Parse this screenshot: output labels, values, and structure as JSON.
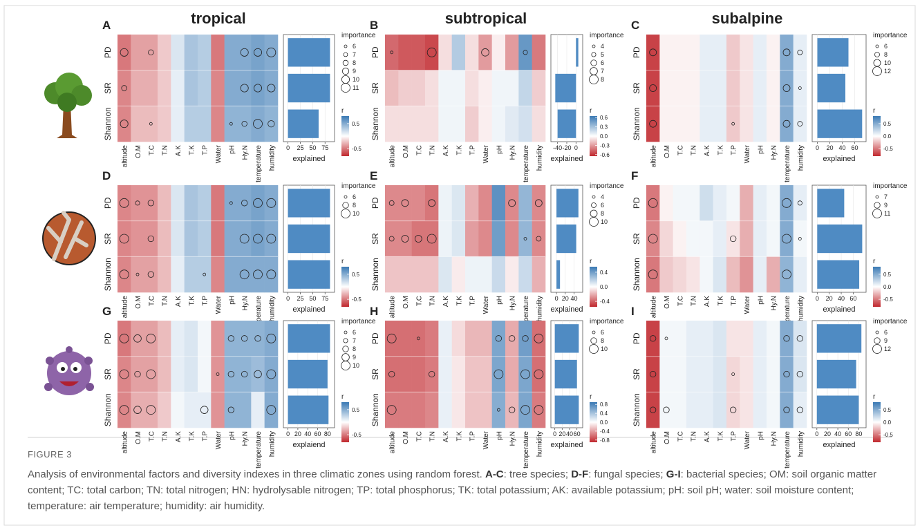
{
  "zones": [
    "tropical",
    "subtropical",
    "subalpine"
  ],
  "rows": [
    "PD",
    "SR",
    "Shannon"
  ],
  "columns": [
    "altitude",
    "O.M",
    "T.C",
    "T.N",
    "A.K",
    "T.K",
    "T.P",
    "Water",
    "pH",
    "Hy.N",
    "temperature",
    "humidity"
  ],
  "bar_color": "#4f8bc3",
  "color_scale": {
    "negative": "#c0272d",
    "zero": "#ffffff",
    "positive": "#3a79b4"
  },
  "panels": [
    {
      "label": "A",
      "r": [
        [
          -0.5,
          -0.35,
          -0.35,
          -0.2,
          0.15,
          0.35,
          0.3,
          -0.5,
          0.5,
          0.5,
          0.55,
          0.5
        ],
        [
          -0.45,
          -0.3,
          -0.3,
          -0.2,
          0.1,
          0.35,
          0.3,
          -0.45,
          0.5,
          0.5,
          0.55,
          0.5
        ],
        [
          -0.45,
          -0.25,
          -0.25,
          -0.2,
          0.1,
          0.3,
          0.3,
          -0.45,
          0.45,
          0.45,
          0.5,
          0.45
        ]
      ],
      "importance": [
        [
          10,
          null,
          8,
          null,
          null,
          null,
          null,
          null,
          null,
          10,
          10,
          11
        ],
        [
          8,
          null,
          null,
          null,
          null,
          null,
          null,
          null,
          null,
          10,
          10,
          10
        ],
        [
          10,
          null,
          6,
          null,
          null,
          null,
          null,
          null,
          6,
          8,
          11,
          9
        ]
      ],
      "explained": [
        85,
        85,
        62
      ],
      "explained_lim": [
        -5,
        90
      ],
      "explained_ticks": [
        0,
        25,
        50,
        75
      ],
      "explained_label": "explained",
      "importance_title": "importance",
      "importance_ticks": [
        6,
        7,
        8,
        9,
        10,
        11
      ],
      "r_title": "r",
      "r_lim": [
        -0.8,
        0.8
      ],
      "r_ticks": [
        0.5,
        -0.5
      ]
    },
    {
      "label": "B",
      "r": [
        [
          -0.45,
          -0.5,
          -0.5,
          -0.55,
          -0.1,
          0.25,
          -0.1,
          -0.3,
          -0.05,
          -0.3,
          0.5,
          -0.4
        ],
        [
          -0.2,
          -0.15,
          -0.15,
          -0.1,
          0.05,
          0.05,
          -0.1,
          -0.05,
          0.05,
          0.05,
          0.2,
          -0.15
        ],
        [
          -0.1,
          -0.1,
          -0.1,
          -0.1,
          0.05,
          0.05,
          -0.15,
          -0.05,
          0.05,
          0.1,
          0.15,
          -0.1
        ]
      ],
      "importance": [
        [
          4,
          null,
          null,
          8,
          null,
          null,
          null,
          7,
          null,
          null,
          5,
          null
        ],
        [
          null,
          null,
          null,
          null,
          null,
          null,
          null,
          null,
          null,
          null,
          null,
          null
        ],
        [
          null,
          null,
          null,
          null,
          null,
          null,
          null,
          null,
          null,
          null,
          null,
          null
        ]
      ],
      "explained": [
        5,
        -45,
        -40
      ],
      "explained_lim": [
        -50,
        10
      ],
      "explained_ticks": [
        -40,
        -20,
        0
      ],
      "explained_label": "explained",
      "importance_title": "importance",
      "importance_ticks": [
        4,
        5,
        6,
        7,
        8
      ],
      "r_title": "r",
      "r_lim": [
        -0.65,
        0.65
      ],
      "r_ticks": [
        0.6,
        0.3,
        {
          "value": 0,
          "label": "0.0"
        },
        -0.3,
        -0.6
      ]
    },
    {
      "label": "C",
      "r": [
        [
          -0.7,
          -0.05,
          -0.05,
          -0.05,
          0.1,
          0.1,
          -0.2,
          -0.1,
          0.1,
          -0.05,
          0.5,
          0.1
        ],
        [
          -0.7,
          -0.05,
          -0.05,
          -0.05,
          0.1,
          0.1,
          -0.2,
          -0.1,
          0.1,
          -0.05,
          0.5,
          0.1
        ],
        [
          -0.7,
          -0.05,
          -0.05,
          -0.05,
          0.1,
          0.1,
          -0.2,
          -0.1,
          0.1,
          -0.05,
          0.5,
          0.1
        ]
      ],
      "importance": [
        [
          10,
          null,
          null,
          null,
          null,
          null,
          null,
          null,
          null,
          null,
          10,
          8
        ],
        [
          10,
          null,
          null,
          null,
          null,
          null,
          null,
          null,
          null,
          null,
          10,
          6
        ],
        [
          10,
          null,
          null,
          null,
          null,
          null,
          6,
          null,
          null,
          null,
          10,
          8
        ]
      ],
      "explained": [
        50,
        45,
        72
      ],
      "explained_lim": [
        -5,
        75
      ],
      "explained_ticks": [
        0,
        20,
        40,
        60
      ],
      "explained_label": "explained",
      "importance_title": "importance",
      "importance_ticks": [
        6,
        8,
        10,
        12
      ],
      "r_title": "r",
      "r_lim": [
        -0.8,
        0.8
      ],
      "r_ticks": [
        0.5,
        {
          "value": 0,
          "label": "0.0"
        },
        -0.5
      ]
    },
    {
      "label": "D",
      "r": [
        [
          -0.45,
          -0.4,
          -0.4,
          -0.25,
          0.15,
          0.35,
          0.3,
          -0.5,
          0.5,
          0.5,
          0.55,
          0.5
        ],
        [
          -0.45,
          -0.4,
          -0.4,
          -0.25,
          0.15,
          0.35,
          0.3,
          -0.5,
          0.5,
          0.5,
          0.55,
          0.5
        ],
        [
          -0.45,
          -0.35,
          -0.35,
          -0.25,
          0.1,
          0.3,
          0.3,
          -0.45,
          0.5,
          0.5,
          0.5,
          0.5
        ]
      ],
      "importance": [
        [
          10,
          7,
          8,
          null,
          null,
          null,
          null,
          null,
          6,
          8,
          10,
          10
        ],
        [
          10,
          null,
          8,
          null,
          null,
          null,
          null,
          null,
          null,
          10,
          10,
          10
        ],
        [
          10,
          6,
          8,
          null,
          null,
          null,
          6,
          null,
          null,
          10,
          10,
          10
        ]
      ],
      "explained": [
        85,
        85,
        85
      ],
      "explained_lim": [
        -5,
        90
      ],
      "explained_ticks": [
        0,
        25,
        50,
        75
      ],
      "explained_label": "explained",
      "importance_title": "importance",
      "importance_ticks": [
        6,
        8,
        10
      ],
      "r_title": "r",
      "r_lim": [
        -0.8,
        0.8
      ],
      "r_ticks": [
        0.5,
        -0.5
      ]
    },
    {
      "label": "E",
      "r": [
        [
          -0.3,
          -0.3,
          -0.3,
          -0.35,
          0.05,
          0.1,
          -0.2,
          -0.3,
          0.45,
          -0.3,
          0.3,
          -0.3
        ],
        [
          -0.3,
          -0.3,
          -0.35,
          -0.35,
          0.05,
          0.1,
          -0.25,
          -0.3,
          0.4,
          -0.3,
          0.3,
          -0.3
        ],
        [
          -0.15,
          -0.15,
          -0.15,
          -0.15,
          0.1,
          -0.05,
          0.05,
          0.05,
          0.15,
          -0.05,
          0.15,
          -0.2
        ]
      ],
      "importance": [
        [
          6,
          8,
          null,
          8,
          null,
          null,
          null,
          null,
          null,
          8,
          null,
          8
        ],
        [
          6,
          8,
          8,
          10,
          null,
          null,
          null,
          null,
          null,
          null,
          4,
          6
        ],
        [
          null,
          null,
          null,
          null,
          null,
          null,
          null,
          null,
          null,
          null,
          null,
          null
        ]
      ],
      "explained": [
        50,
        45,
        8
      ],
      "explained_lim": [
        -8,
        55
      ],
      "explained_ticks": [
        0,
        20,
        40
      ],
      "explained_label": "explained",
      "importance_title": "importance",
      "importance_ticks": [
        4,
        6,
        8,
        10
      ],
      "r_title": "r",
      "r_lim": [
        -0.55,
        0.55
      ],
      "r_ticks": [
        0.4,
        {
          "value": 0,
          "label": "0.0"
        },
        -0.4
      ]
    },
    {
      "label": "F",
      "r": [
        [
          -0.5,
          -0.05,
          0.05,
          0.05,
          0.2,
          0.1,
          0.05,
          -0.3,
          0.1,
          0.05,
          0.5,
          0.1
        ],
        [
          -0.45,
          -0.15,
          -0.05,
          0.05,
          0.05,
          0.1,
          -0.1,
          -0.3,
          0.1,
          0.05,
          0.5,
          0.05
        ],
        [
          -0.5,
          -0.2,
          -0.15,
          -0.1,
          0.05,
          0.15,
          -0.25,
          -0.4,
          0.1,
          -0.3,
          0.45,
          0.1
        ]
      ],
      "importance": [
        [
          11,
          null,
          null,
          null,
          null,
          null,
          null,
          null,
          null,
          null,
          11,
          8
        ],
        [
          11,
          null,
          null,
          null,
          null,
          null,
          9,
          null,
          null,
          null,
          11,
          7
        ],
        [
          11,
          null,
          null,
          null,
          null,
          null,
          null,
          null,
          null,
          null,
          11,
          null
        ]
      ],
      "explained": [
        45,
        75,
        70
      ],
      "explained_lim": [
        -5,
        78
      ],
      "explained_ticks": [
        0,
        20,
        40,
        60
      ],
      "explained_label": "explained",
      "importance_title": "importance",
      "importance_ticks": [
        7,
        9,
        11
      ],
      "r_title": "r",
      "r_lim": [
        -0.8,
        0.8
      ],
      "r_ticks": [
        0.5,
        {
          "value": 0,
          "label": "0.0"
        },
        -0.5
      ]
    },
    {
      "label": "G",
      "r": [
        [
          -0.5,
          -0.35,
          -0.35,
          -0.25,
          0.1,
          0.15,
          0.05,
          -0.4,
          0.45,
          0.45,
          0.45,
          0.5
        ],
        [
          -0.45,
          -0.35,
          -0.35,
          -0.25,
          0.1,
          0.15,
          0.05,
          -0.4,
          0.45,
          0.45,
          0.4,
          0.5
        ],
        [
          -0.45,
          -0.3,
          -0.3,
          -0.2,
          0.05,
          0.1,
          0.1,
          -0.4,
          0.45,
          0.45,
          0.1,
          0.5
        ]
      ],
      "importance": [
        [
          10,
          9,
          10,
          null,
          null,
          null,
          null,
          null,
          8,
          8,
          8,
          10
        ],
        [
          10,
          8,
          10,
          null,
          null,
          null,
          null,
          6,
          8,
          8,
          9,
          10
        ],
        [
          10,
          9,
          10,
          null,
          null,
          null,
          9,
          null,
          8,
          null,
          null,
          10
        ]
      ],
      "explained": [
        85,
        80,
        82
      ],
      "explained_lim": [
        -5,
        90
      ],
      "explained_ticks": [
        0,
        20,
        40,
        60,
        80
      ],
      "explained_label": "explaiend",
      "importance_title": "importance",
      "importance_ticks": [
        6,
        7,
        8,
        9,
        10
      ],
      "r_title": "r",
      "r_lim": [
        -0.8,
        0.8
      ],
      "r_ticks": [
        0.5,
        -0.5
      ]
    },
    {
      "label": "H",
      "r": [
        [
          -0.6,
          -0.6,
          -0.6,
          -0.55,
          0.1,
          -0.15,
          -0.3,
          -0.3,
          0.6,
          -0.35,
          0.65,
          -0.6
        ],
        [
          -0.6,
          -0.6,
          -0.6,
          -0.55,
          0.1,
          -0.1,
          -0.25,
          -0.25,
          0.6,
          -0.35,
          0.6,
          -0.6
        ],
        [
          -0.55,
          -0.55,
          -0.55,
          -0.5,
          0.1,
          -0.1,
          -0.25,
          -0.25,
          0.55,
          -0.3,
          0.6,
          -0.55
        ]
      ],
      "importance": [
        [
          10,
          null,
          6,
          null,
          null,
          null,
          null,
          null,
          8,
          8,
          8,
          10
        ],
        [
          8,
          null,
          null,
          8,
          null,
          null,
          null,
          null,
          10,
          null,
          10,
          10
        ],
        [
          10,
          null,
          null,
          null,
          null,
          null,
          null,
          null,
          6,
          8,
          10,
          10
        ]
      ],
      "explained": [
        65,
        60,
        65
      ],
      "explained_lim": [
        -5,
        70
      ],
      "explained_ticks": [
        0,
        20,
        40,
        60
      ],
      "explained_label": "explained",
      "importance_title": "importance",
      "importance_ticks": [
        6,
        8,
        10
      ],
      "r_title": "r",
      "r_lim": [
        -0.9,
        0.9
      ],
      "r_ticks": [
        0.8,
        0.4,
        {
          "value": 0,
          "label": "0.0"
        },
        -0.4,
        -0.8
      ]
    },
    {
      "label": "I",
      "r": [
        [
          -0.7,
          0.05,
          0.05,
          0.1,
          0.1,
          0.15,
          -0.1,
          -0.1,
          0.1,
          0.05,
          0.5,
          0.15
        ],
        [
          -0.7,
          0.05,
          0.05,
          0.1,
          0.1,
          0.15,
          -0.15,
          -0.1,
          0.1,
          0.05,
          0.5,
          0.15
        ],
        [
          -0.7,
          0.05,
          0.05,
          0.1,
          0.1,
          0.15,
          -0.15,
          -0.1,
          0.1,
          0.05,
          0.5,
          0.1
        ]
      ],
      "importance": [
        [
          9,
          6,
          null,
          null,
          null,
          null,
          null,
          null,
          null,
          null,
          9,
          9
        ],
        [
          9,
          null,
          null,
          null,
          null,
          null,
          6,
          null,
          null,
          null,
          9,
          9
        ],
        [
          9,
          9,
          null,
          null,
          null,
          null,
          9,
          null,
          null,
          null,
          9,
          9
        ]
      ],
      "explained": [
        85,
        75,
        80
      ],
      "explained_lim": [
        -5,
        90
      ],
      "explained_ticks": [
        0,
        20,
        40,
        60,
        80
      ],
      "explained_label": "explained",
      "importance_title": "importance",
      "importance_ticks": [
        6,
        9,
        12
      ],
      "r_title": "r",
      "r_lim": [
        -0.8,
        0.8
      ],
      "r_ticks": [
        0.5,
        {
          "value": 0,
          "label": "0.0"
        },
        -0.5
      ]
    }
  ],
  "caption": {
    "label": "FIGURE 3",
    "segments": [
      {
        "text": "Analysis of environmental factors and diversity indexes in three climatic zones using random forest. ",
        "bold": false
      },
      {
        "text": "A-C",
        "bold": true
      },
      {
        "text": ": tree species; ",
        "bold": false
      },
      {
        "text": "D-F",
        "bold": true
      },
      {
        "text": ": fungal species; ",
        "bold": false
      },
      {
        "text": "G-I",
        "bold": true
      },
      {
        "text": ": bacterial species; OM: soil organic matter content; TC: total carbon; TN: total nitrogen; HN: hydrolysable nitrogen; TP: total phosphorus; TK: total potassium; AK: available potassium; pH: soil pH; water: soil moisture content; temperature: air temperature; humidity: air humidity.",
        "bold": false
      }
    ]
  }
}
